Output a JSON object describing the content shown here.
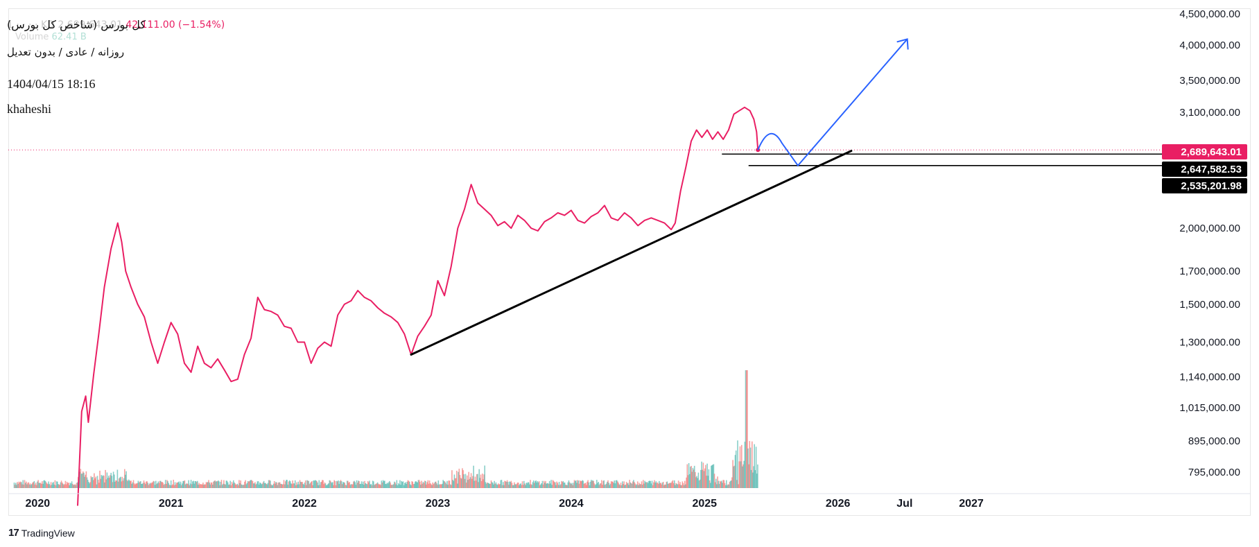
{
  "legend": {
    "ticker_faded": "1 · · · · KD  2,689,643.01",
    "change": "42,111.00 (−1.54%)",
    "volume_label": "Volume",
    "volume_value": "62.41 B"
  },
  "info": {
    "title": "کل بورس (شاخص کل بورس)",
    "subtitle": "روزانه / عادی / بدون تعدیل",
    "datetime": "1404/04/15 18:16",
    "author": "khaheshi"
  },
  "brand": {
    "logo": "17",
    "name": "TradingView"
  },
  "colors": {
    "price_line": "#e91e63",
    "trendline": "#000000",
    "projection": "#2962ff",
    "volume_up": "#26a69a",
    "volume_down": "#ef5350",
    "badge_price": "#e91e63",
    "badge_level": "#000000"
  },
  "chart_data": {
    "type": "line",
    "scale": "log",
    "grid": false,
    "y_ticks": [
      4500000,
      4000000,
      3500000,
      3100000,
      2689643.01,
      2647582.53,
      2535201.98,
      2000000,
      1700000,
      1500000,
      1300000,
      1140000,
      1015000,
      895000,
      795000
    ],
    "y_tick_labels": [
      "4,500,000.00",
      "4,000,000.00",
      "3,500,000.00",
      "3,100,000.00",
      "2,000,000.00",
      "1,700,000.00",
      "1,500,000.00",
      "1,300,000.00",
      "1,140,000.00",
      "1,015,000.00",
      "895,000.00",
      "795,000.00"
    ],
    "x_tick_labels": [
      {
        "label": "2020",
        "t": 2020.0
      },
      {
        "label": "2021",
        "t": 2021.0
      },
      {
        "label": "2022",
        "t": 2022.0
      },
      {
        "label": "2023",
        "t": 2023.0
      },
      {
        "label": "2024",
        "t": 2024.0
      },
      {
        "label": "2025",
        "t": 2025.0
      },
      {
        "label": "2026",
        "t": 2026.0
      },
      {
        "label": "Jul",
        "t": 2026.5
      },
      {
        "label": "2027",
        "t": 2027.0
      }
    ],
    "series": [
      {
        "values": [
          [
            2020.3,
            700000
          ],
          [
            2020.33,
            1000000
          ],
          [
            2020.36,
            1060000
          ],
          [
            2020.38,
            960000
          ],
          [
            2020.42,
            1150000
          ],
          [
            2020.46,
            1350000
          ],
          [
            2020.5,
            1600000
          ],
          [
            2020.55,
            1850000
          ],
          [
            2020.6,
            2040000
          ],
          [
            2020.63,
            1900000
          ],
          [
            2020.66,
            1700000
          ],
          [
            2020.7,
            1600000
          ],
          [
            2020.75,
            1500000
          ],
          [
            2020.8,
            1430000
          ],
          [
            2020.85,
            1300000
          ],
          [
            2020.9,
            1200000
          ],
          [
            2020.95,
            1300000
          ],
          [
            2021.0,
            1400000
          ],
          [
            2021.05,
            1340000
          ],
          [
            2021.1,
            1200000
          ],
          [
            2021.15,
            1160000
          ],
          [
            2021.2,
            1280000
          ],
          [
            2021.25,
            1200000
          ],
          [
            2021.3,
            1180000
          ],
          [
            2021.35,
            1220000
          ],
          [
            2021.4,
            1170000
          ],
          [
            2021.45,
            1120000
          ],
          [
            2021.5,
            1130000
          ],
          [
            2021.55,
            1240000
          ],
          [
            2021.6,
            1320000
          ],
          [
            2021.65,
            1540000
          ],
          [
            2021.7,
            1470000
          ],
          [
            2021.75,
            1460000
          ],
          [
            2021.8,
            1440000
          ],
          [
            2021.85,
            1380000
          ],
          [
            2021.9,
            1370000
          ],
          [
            2021.95,
            1300000
          ],
          [
            2022.0,
            1300000
          ],
          [
            2022.05,
            1200000
          ],
          [
            2022.1,
            1270000
          ],
          [
            2022.15,
            1300000
          ],
          [
            2022.2,
            1280000
          ],
          [
            2022.25,
            1440000
          ],
          [
            2022.3,
            1500000
          ],
          [
            2022.35,
            1520000
          ],
          [
            2022.4,
            1580000
          ],
          [
            2022.45,
            1540000
          ],
          [
            2022.5,
            1520000
          ],
          [
            2022.55,
            1480000
          ],
          [
            2022.6,
            1450000
          ],
          [
            2022.65,
            1430000
          ],
          [
            2022.7,
            1400000
          ],
          [
            2022.75,
            1340000
          ],
          [
            2022.8,
            1240000
          ],
          [
            2022.85,
            1330000
          ],
          [
            2022.9,
            1380000
          ],
          [
            2022.95,
            1440000
          ],
          [
            2023.0,
            1640000
          ],
          [
            2023.05,
            1550000
          ],
          [
            2023.1,
            1730000
          ],
          [
            2023.15,
            2000000
          ],
          [
            2023.2,
            2150000
          ],
          [
            2023.25,
            2360000
          ],
          [
            2023.3,
            2200000
          ],
          [
            2023.35,
            2150000
          ],
          [
            2023.4,
            2100000
          ],
          [
            2023.45,
            2020000
          ],
          [
            2023.5,
            2050000
          ],
          [
            2023.55,
            2000000
          ],
          [
            2023.6,
            2100000
          ],
          [
            2023.65,
            2060000
          ],
          [
            2023.7,
            2000000
          ],
          [
            2023.75,
            1980000
          ],
          [
            2023.8,
            2050000
          ],
          [
            2023.85,
            2080000
          ],
          [
            2023.9,
            2120000
          ],
          [
            2023.95,
            2100000
          ],
          [
            2024.0,
            2140000
          ],
          [
            2024.05,
            2060000
          ],
          [
            2024.1,
            2040000
          ],
          [
            2024.15,
            2090000
          ],
          [
            2024.2,
            2120000
          ],
          [
            2024.25,
            2180000
          ],
          [
            2024.3,
            2080000
          ],
          [
            2024.35,
            2060000
          ],
          [
            2024.4,
            2120000
          ],
          [
            2024.45,
            2080000
          ],
          [
            2024.5,
            2020000
          ],
          [
            2024.55,
            2060000
          ],
          [
            2024.6,
            2080000
          ],
          [
            2024.65,
            2060000
          ],
          [
            2024.7,
            2040000
          ],
          [
            2024.75,
            1990000
          ],
          [
            2024.78,
            2040000
          ],
          [
            2024.82,
            2300000
          ],
          [
            2024.86,
            2520000
          ],
          [
            2024.9,
            2780000
          ],
          [
            2024.94,
            2900000
          ],
          [
            2024.98,
            2820000
          ],
          [
            2025.02,
            2900000
          ],
          [
            2025.06,
            2800000
          ],
          [
            2025.1,
            2880000
          ],
          [
            2025.14,
            2800000
          ],
          [
            2025.18,
            2900000
          ],
          [
            2025.22,
            3080000
          ],
          [
            2025.26,
            3120000
          ],
          [
            2025.3,
            3160000
          ],
          [
            2025.34,
            3120000
          ],
          [
            2025.37,
            3020000
          ],
          [
            2025.39,
            2880000
          ],
          [
            2025.4,
            2689643.01
          ]
        ]
      }
    ],
    "volume": {
      "t_start": 2019.82,
      "t_end": 2025.4,
      "peak_t": 2025.31,
      "max_value": 62410000000
    },
    "levels": [
      2689643.01,
      2647582.53,
      2535201.98
    ],
    "level_labels": [
      "2,689,643.01",
      "2,647,582.53",
      "2,535,201.98"
    ],
    "trendline": [
      [
        2022.8,
        1240000
      ],
      [
        2026.1,
        2680000
      ]
    ],
    "projection": [
      [
        2025.4,
        2689643.01
      ],
      [
        2025.49,
        2830000
      ],
      [
        2025.58,
        2760000
      ],
      [
        2025.7,
        2535201.98
      ],
      [
        2026.52,
        4090000
      ]
    ]
  }
}
